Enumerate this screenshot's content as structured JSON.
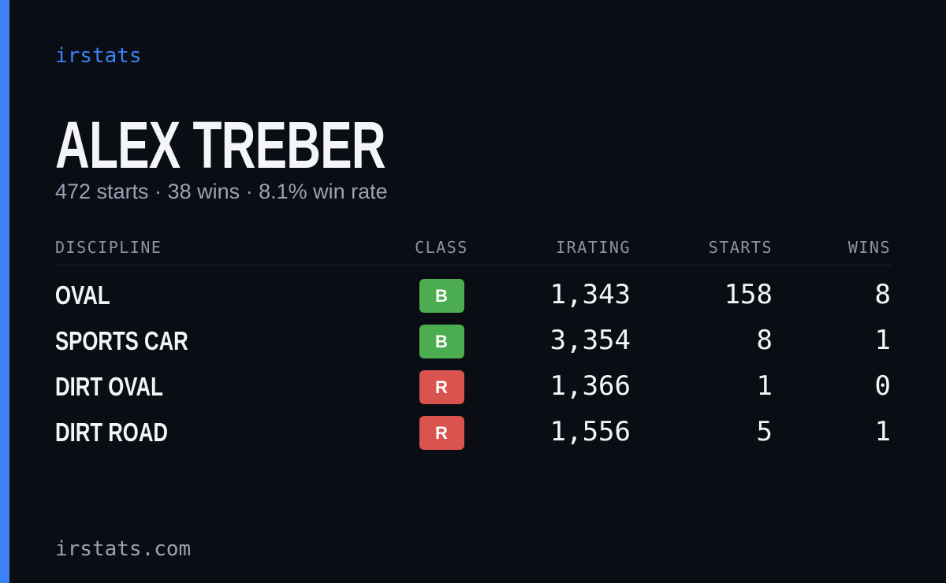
{
  "brand": "irstats",
  "name": "ALEX TREBER",
  "summary": "472 starts · 38 wins · 8.1% win rate",
  "table": {
    "headers": [
      "DISCIPLINE",
      "CLASS",
      "IRATING",
      "STARTS",
      "WINS"
    ],
    "rows": [
      {
        "discipline": "OVAL",
        "class": "B",
        "class_color": "#4cad50",
        "irating": "1,343",
        "starts": "158",
        "wins": "8"
      },
      {
        "discipline": "SPORTS CAR",
        "class": "B",
        "class_color": "#4cad50",
        "irating": "3,354",
        "starts": "8",
        "wins": "1"
      },
      {
        "discipline": "DIRT OVAL",
        "class": "R",
        "class_color": "#d9534f",
        "irating": "1,366",
        "starts": "1",
        "wins": "0"
      },
      {
        "discipline": "DIRT ROAD",
        "class": "R",
        "class_color": "#d9534f",
        "irating": "1,556",
        "starts": "5",
        "wins": "1"
      }
    ]
  },
  "footer": "irstats.com"
}
